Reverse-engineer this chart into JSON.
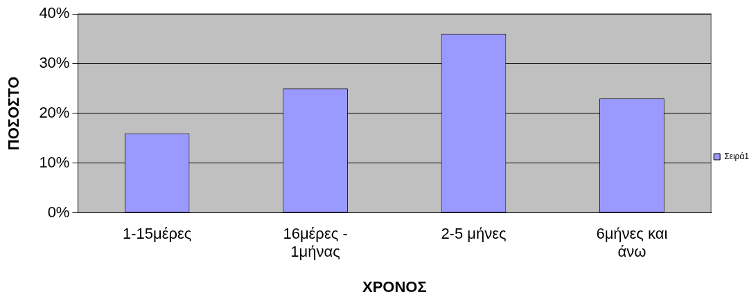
{
  "chart_data": {
    "type": "bar",
    "xlabel": "ΧΡΟΝΟΣ",
    "ylabel": "ΠΟΣΟΣΤΟ",
    "categories": [
      "1-15μέρες",
      "16μέρες - 1μήνας",
      "2-5 μήνες",
      "6μήνες και άνω"
    ],
    "series": [
      {
        "name": "Σειρά1",
        "color": "#9999ff",
        "values": [
          16,
          25,
          36,
          23
        ]
      }
    ],
    "ylim": [
      0,
      40
    ],
    "yticks": [
      {
        "value": 0,
        "label": "0%"
      },
      {
        "value": 10,
        "label": "10%"
      },
      {
        "value": 20,
        "label": "20%"
      },
      {
        "value": 30,
        "label": "30%"
      },
      {
        "value": 40,
        "label": "40%"
      }
    ],
    "grid": "y",
    "legend": "right"
  }
}
